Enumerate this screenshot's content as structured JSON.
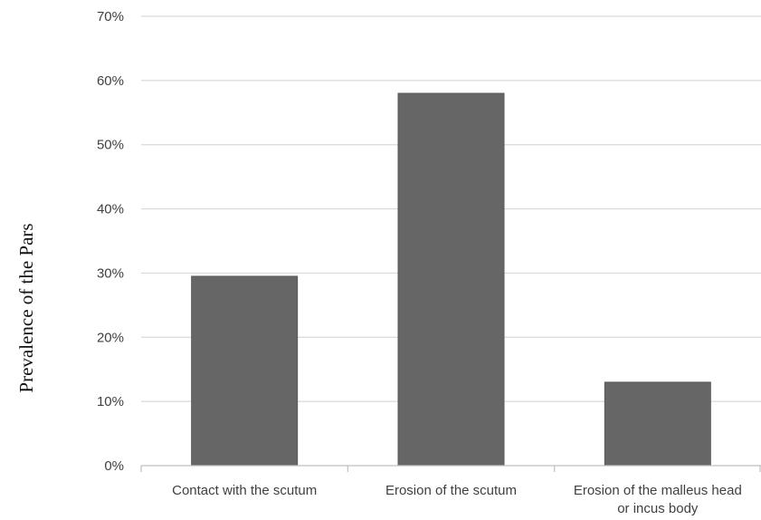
{
  "chart_data": {
    "type": "bar",
    "title": "",
    "xlabel": "",
    "ylabel": "Prevalence of the Pars",
    "categories": [
      [
        "Contact with the scutum"
      ],
      [
        "Erosion of the scutum"
      ],
      [
        "Erosion of the malleus head",
        "or incus body"
      ]
    ],
    "values": [
      29.5,
      58,
      13
    ],
    "value_unit": "%",
    "ylim": [
      0,
      70
    ],
    "yticks": [
      0,
      10,
      20,
      30,
      40,
      50,
      60,
      70
    ],
    "ytick_labels": [
      "0%",
      "10%",
      "20%",
      "30%",
      "40%",
      "50%",
      "60%",
      "70%"
    ],
    "grid": true,
    "legend": "none",
    "colors": {
      "bar": "#666666",
      "bar_edge": "#5a5a5a",
      "grid": "#d9d9d9",
      "axis": "#bfbfbf"
    }
  }
}
